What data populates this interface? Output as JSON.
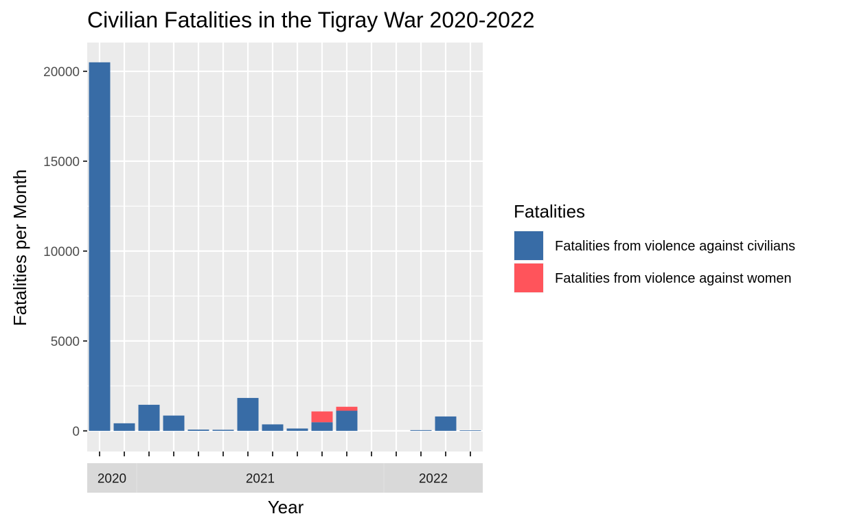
{
  "chart_data": {
    "type": "bar",
    "stacked": true,
    "title": "Civilian Fatalities in the Tigray War 2020-2022",
    "xlabel": "Year",
    "ylabel": "Fatalities per Month",
    "ylim": [
      -1150,
      21600
    ],
    "yticks": [
      0,
      5000,
      10000,
      15000,
      20000
    ],
    "grid": true,
    "legend": {
      "title": "Fatalities",
      "placement": "right"
    },
    "facets": [
      {
        "label": "2020",
        "months": 2
      },
      {
        "label": "2021",
        "months": 10
      },
      {
        "label": "2022",
        "months": 4
      }
    ],
    "series": [
      {
        "name": "Fatalities from violence against civilians",
        "color": "#386CA6",
        "values": [
          20500,
          420,
          1450,
          850,
          70,
          60,
          1830,
          360,
          130,
          480,
          1120,
          0,
          0,
          40,
          800,
          30
        ]
      },
      {
        "name": "Fatalities from violence against women",
        "color": "#FF545B",
        "values": [
          0,
          0,
          0,
          0,
          0,
          0,
          0,
          0,
          0,
          600,
          220,
          0,
          0,
          0,
          0,
          0
        ]
      }
    ]
  }
}
